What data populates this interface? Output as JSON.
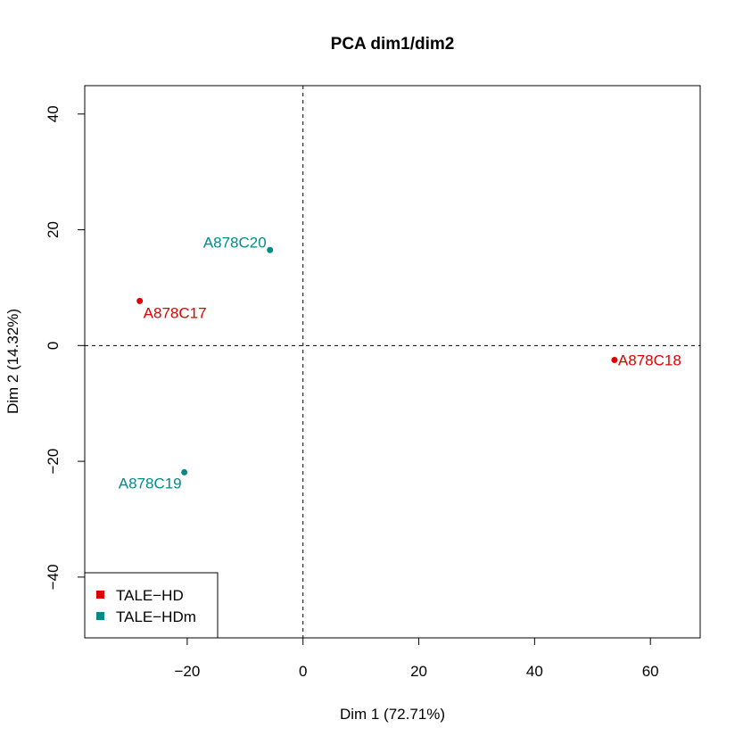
{
  "chart_data": {
    "type": "scatter",
    "title": "PCA dim1/dim2",
    "xlabel": "Dim 1 (72.71%)",
    "ylabel": "Dim 2 (14.32%)",
    "xlim": [
      -37.7,
      68.6
    ],
    "ylim": [
      -50.5,
      44.9
    ],
    "xticks": [
      -20,
      0,
      20,
      40,
      60
    ],
    "yticks": [
      -40,
      -20,
      0,
      20,
      40
    ],
    "xtick_labels": [
      "−20",
      "0",
      "20",
      "40",
      "60"
    ],
    "ytick_labels": [
      "−40",
      "−20",
      "0",
      "20",
      "40"
    ],
    "reference_lines": {
      "x": 0,
      "y": 0,
      "style": "dashed"
    },
    "grid": false,
    "legend_position": "bottom-left",
    "series": [
      {
        "name": "TALE−HD",
        "color": "#e00000"
      },
      {
        "name": "TALE−HDm",
        "color": "#008b8b"
      }
    ],
    "points": [
      {
        "label": "A878C17",
        "series": 0,
        "x": -28.2,
        "y": 7.7,
        "label_side": "below-right"
      },
      {
        "label": "A878C18",
        "series": 0,
        "x": 53.8,
        "y": -2.5,
        "label_side": "right"
      },
      {
        "label": "A878C19",
        "series": 1,
        "x": -20.5,
        "y": -21.9,
        "label_side": "below-left"
      },
      {
        "label": "A878C20",
        "series": 1,
        "x": -5.7,
        "y": 16.5,
        "label_side": "left"
      }
    ]
  }
}
